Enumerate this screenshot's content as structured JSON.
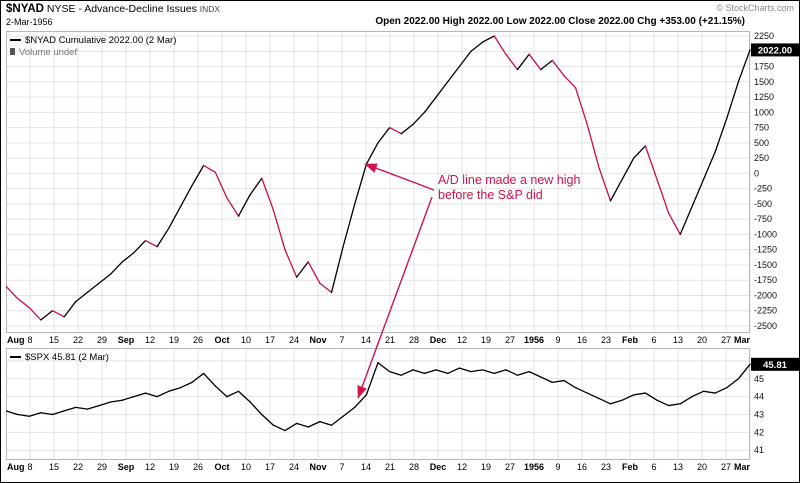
{
  "header": {
    "symbol": "$NYAD",
    "name": " NYSE - Advance-Decline Issues ",
    "tag": "INDX",
    "date": "2-Mar-1956",
    "copyright": "© StockCharts.com",
    "ohlc_line": "Open 2022.00  High 2022.00  Low 2022.00  Close 2022.00  Chg +353.00 (+21.15%)"
  },
  "annotation": {
    "line1": "A/D line made a new high",
    "line2": "before the S&P did"
  },
  "colors": {
    "line_up": "#000000",
    "line_down": "#c8103f",
    "annotation": "#d0134b",
    "grid": "#e4e4e4",
    "panel_border": "#b7b7b7",
    "badge_bg": "#000000",
    "badge_text": "#ffffff",
    "label_text": "#111111"
  },
  "x_ticks": [
    {
      "label": "Aug",
      "bold": true
    },
    {
      "label": "8",
      "bold": false
    },
    {
      "label": "15",
      "bold": false
    },
    {
      "label": "22",
      "bold": false
    },
    {
      "label": "29",
      "bold": false
    },
    {
      "label": "Sep",
      "bold": true
    },
    {
      "label": "12",
      "bold": false
    },
    {
      "label": "19",
      "bold": false
    },
    {
      "label": "26",
      "bold": false
    },
    {
      "label": "Oct",
      "bold": true
    },
    {
      "label": "10",
      "bold": false
    },
    {
      "label": "17",
      "bold": false
    },
    {
      "label": "24",
      "bold": false
    },
    {
      "label": "Nov",
      "bold": true
    },
    {
      "label": "7",
      "bold": false
    },
    {
      "label": "14",
      "bold": false
    },
    {
      "label": "21",
      "bold": false
    },
    {
      "label": "28",
      "bold": false
    },
    {
      "label": "Dec",
      "bold": true
    },
    {
      "label": "12",
      "bold": false
    },
    {
      "label": "19",
      "bold": false
    },
    {
      "label": "27",
      "bold": false
    },
    {
      "label": "1956",
      "bold": true
    },
    {
      "label": "9",
      "bold": false
    },
    {
      "label": "16",
      "bold": false
    },
    {
      "label": "23",
      "bold": false
    },
    {
      "label": "Feb",
      "bold": true
    },
    {
      "label": "6",
      "bold": false
    },
    {
      "label": "13",
      "bold": false
    },
    {
      "label": "20",
      "bold": false
    },
    {
      "label": "27",
      "bold": false
    },
    {
      "label": "Mar",
      "bold": true
    }
  ],
  "chart_data": [
    {
      "type": "line",
      "name": "NYAD Cumulative",
      "legend": "$NYAD Cumulative 2022.00 (2 Mar)",
      "legend_volume": "Volume undef",
      "x_ticks_shared": true,
      "ylim": [
        -2500,
        2250
      ],
      "ygrid": [
        2250,
        2000,
        1750,
        1500,
        1250,
        1000,
        750,
        500,
        250,
        0,
        -250,
        -500,
        -750,
        -1000,
        -1250,
        -1500,
        -1750,
        -2000,
        -2250,
        -2500
      ],
      "ylabel_values": [
        2250,
        2000,
        1750,
        1500,
        1250,
        1000,
        750,
        500,
        250,
        0,
        -250,
        -500,
        -750,
        -1000,
        -1250,
        -1500,
        -1750,
        -2000,
        -2250,
        -2500
      ],
      "last_value_badge": "2022.00",
      "color_by_direction": true,
      "values": [
        -1850,
        -2050,
        -2200,
        -2400,
        -2250,
        -2350,
        -2100,
        -1950,
        -1800,
        -1650,
        -1450,
        -1300,
        -1100,
        -1200,
        -900,
        -550,
        -200,
        130,
        20,
        -400,
        -700,
        -350,
        -80,
        -600,
        -1250,
        -1700,
        -1450,
        -1800,
        -1950,
        -1200,
        -500,
        150,
        500,
        750,
        650,
        800,
        1000,
        1250,
        1500,
        1750,
        2000,
        2150,
        2250,
        1950,
        1700,
        1950,
        1700,
        1850,
        1600,
        1400,
        800,
        100,
        -450,
        -100,
        250,
        450,
        -100,
        -650,
        -1000,
        -550,
        -100,
        350,
        900,
        1500,
        2022
      ]
    },
    {
      "type": "line",
      "name": "SPX",
      "legend": "$SPX 45.81 (2 Mar)",
      "x_ticks_shared": true,
      "ylim": [
        40.9,
        46.5
      ],
      "ygrid": [
        46,
        45,
        44,
        43,
        42,
        41
      ],
      "ylabel_values": [
        45,
        44,
        43,
        42,
        41
      ],
      "last_value_badge": "45.81",
      "color_by_direction": false,
      "values": [
        43.2,
        43.0,
        42.9,
        43.1,
        43.0,
        43.2,
        43.4,
        43.3,
        43.5,
        43.7,
        43.8,
        44.0,
        44.2,
        44.0,
        44.3,
        44.5,
        44.8,
        45.3,
        44.6,
        44.0,
        44.3,
        43.7,
        43.0,
        42.4,
        42.1,
        42.5,
        42.3,
        42.6,
        42.4,
        42.9,
        43.4,
        44.1,
        45.9,
        45.4,
        45.2,
        45.5,
        45.3,
        45.5,
        45.3,
        45.6,
        45.4,
        45.5,
        45.3,
        45.5,
        45.2,
        45.4,
        45.1,
        44.8,
        44.9,
        44.5,
        44.2,
        43.9,
        43.6,
        43.8,
        44.1,
        44.2,
        43.8,
        43.5,
        43.6,
        44.0,
        44.3,
        44.2,
        44.5,
        45.0,
        45.81
      ]
    }
  ]
}
